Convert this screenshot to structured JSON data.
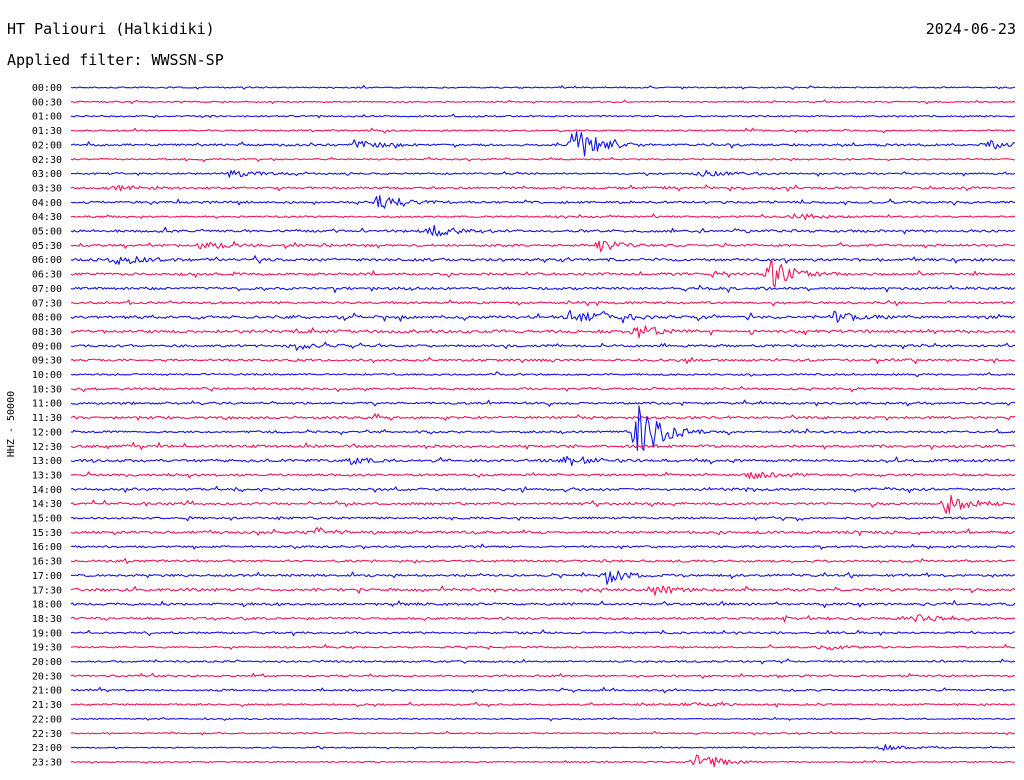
{
  "header": {
    "station": "HT Paliouri (Halkidiki)",
    "date": "2024-06-23",
    "filter": "Applied filter: WWSSN-SP"
  },
  "chart_data": {
    "type": "line",
    "title": "HT Paliouri (Halkidiki)",
    "subtitle": "Applied filter: WWSSN-SP",
    "ylabel": "HHZ - 50000",
    "xlabel": "",
    "colors": [
      "#1515e0",
      "#ee1655"
    ],
    "grid": false,
    "legend": "none",
    "row_labels": [
      "00:00",
      "00:30",
      "01:00",
      "01:30",
      "02:00",
      "02:30",
      "03:00",
      "03:30",
      "04:00",
      "04:30",
      "05:00",
      "05:30",
      "06:00",
      "06:30",
      "07:00",
      "07:30",
      "08:00",
      "08:30",
      "09:00",
      "09:30",
      "10:00",
      "10:30",
      "11:00",
      "11:30",
      "12:00",
      "12:30",
      "13:00",
      "13:30",
      "14:00",
      "14:30",
      "15:00",
      "15:30",
      "16:00",
      "16:30",
      "17:00",
      "17:30",
      "18:00",
      "18:30",
      "19:00",
      "19:30",
      "20:00",
      "20:30",
      "21:00",
      "21:30",
      "22:00",
      "22:30",
      "23:00",
      "23:30"
    ],
    "noise_levels": [
      0.6,
      0.6,
      0.7,
      0.7,
      1.0,
      0.7,
      0.8,
      1.0,
      1.0,
      0.8,
      1.1,
      1.0,
      1.2,
      1.1,
      1.2,
      1.0,
      1.3,
      1.3,
      1.0,
      1.1,
      0.8,
      1.0,
      1.0,
      1.1,
      1.0,
      1.2,
      1.2,
      1.0,
      1.1,
      1.1,
      0.9,
      1.2,
      0.9,
      1.0,
      1.0,
      1.2,
      1.1,
      1.1,
      0.9,
      0.8,
      0.8,
      0.8,
      0.8,
      0.8,
      0.6,
      0.6,
      0.5,
      0.5
    ],
    "events": [
      {
        "row": 4,
        "minute": 16.0,
        "amplitude": 3.2
      },
      {
        "row": 4,
        "minute": 9.0,
        "amplitude": 0.8
      },
      {
        "row": 4,
        "minute": 29.2,
        "amplitude": 0.8
      },
      {
        "row": 6,
        "minute": 5.0,
        "amplitude": 0.7
      },
      {
        "row": 6,
        "minute": 20.0,
        "amplitude": 0.7
      },
      {
        "row": 7,
        "minute": 1.5,
        "amplitude": 0.5
      },
      {
        "row": 8,
        "minute": 9.8,
        "amplitude": 1.4
      },
      {
        "row": 9,
        "minute": 23.0,
        "amplitude": 0.7
      },
      {
        "row": 10,
        "minute": 11.3,
        "amplitude": 1.2
      },
      {
        "row": 11,
        "minute": 4.2,
        "amplitude": 0.6
      },
      {
        "row": 11,
        "minute": 16.8,
        "amplitude": 0.9
      },
      {
        "row": 12,
        "minute": 1.4,
        "amplitude": 0.9
      },
      {
        "row": 13,
        "minute": 22.2,
        "amplitude": 2.6
      },
      {
        "row": 16,
        "minute": 15.9,
        "amplitude": 1.4
      },
      {
        "row": 16,
        "minute": 16.8,
        "amplitude": 0.8
      },
      {
        "row": 16,
        "minute": 24.2,
        "amplitude": 0.9
      },
      {
        "row": 17,
        "minute": 18.0,
        "amplitude": 1.1
      },
      {
        "row": 18,
        "minute": 7.1,
        "amplitude": 0.7
      },
      {
        "row": 24,
        "minute": 18.0,
        "amplitude": 5.0
      },
      {
        "row": 26,
        "minute": 15.7,
        "amplitude": 1.1
      },
      {
        "row": 26,
        "minute": 8.8,
        "amplitude": 0.6
      },
      {
        "row": 27,
        "minute": 21.6,
        "amplitude": 0.7
      },
      {
        "row": 29,
        "minute": 27.8,
        "amplitude": 1.6
      },
      {
        "row": 31,
        "minute": 7.7,
        "amplitude": 0.9
      },
      {
        "row": 34,
        "minute": 17.0,
        "amplitude": 1.4
      },
      {
        "row": 35,
        "minute": 18.5,
        "amplitude": 0.8
      },
      {
        "row": 37,
        "minute": 26.6,
        "amplitude": 0.7
      },
      {
        "row": 39,
        "minute": 23.8,
        "amplitude": 0.5
      },
      {
        "row": 43,
        "minute": 19.5,
        "amplitude": 0.4
      },
      {
        "row": 46,
        "minute": 25.8,
        "amplitude": 0.6
      },
      {
        "row": 47,
        "minute": 19.9,
        "amplitude": 1.8
      }
    ]
  }
}
